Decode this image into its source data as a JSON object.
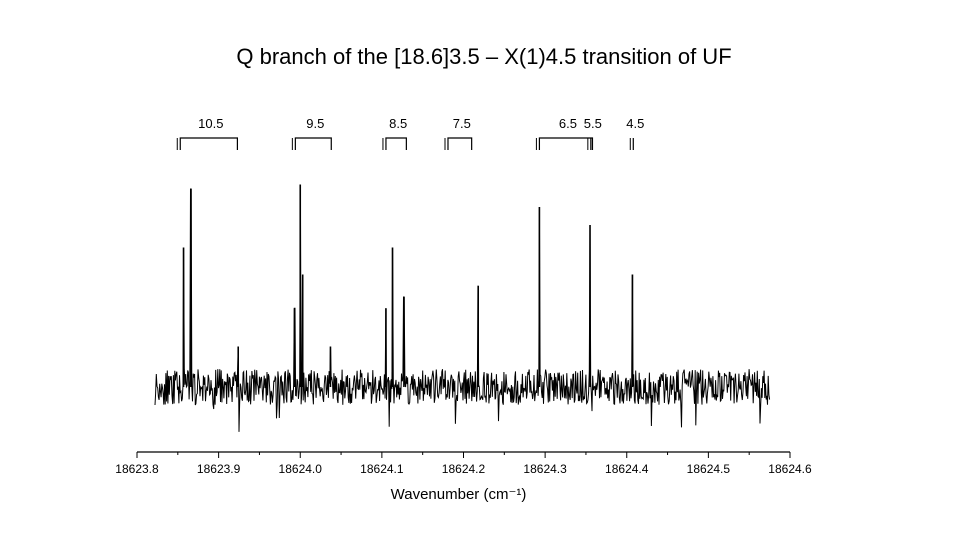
{
  "slide": {
    "title": "Q branch of the [18.6]3.5 – X(1)4.5 transition of UF"
  },
  "chart_data": {
    "type": "line",
    "title": "Q branch of the [18.6]3.5 – X(1)4.5 transition of UF",
    "xlabel": "Wavenumber (cm⁻¹)",
    "ylabel": "",
    "xlim": [
      18623.8,
      18624.6
    ],
    "x_ticks": [
      "18623.8",
      "18623.9",
      "18624.0",
      "18624.1",
      "18624.2",
      "18624.3",
      "18624.4",
      "18624.5",
      "18624.6"
    ],
    "y_axis_visible": false,
    "grid": false,
    "series": [
      {
        "style": "spectrum",
        "baseline": 0.0,
        "noise": 0.08,
        "x_range": [
          18623.822,
          18624.575
        ],
        "peaks": [
          {
            "x": 18623.857,
            "y": 0.62
          },
          {
            "x": 18623.866,
            "y": 0.88
          },
          {
            "x": 18623.924,
            "y": 0.18
          },
          {
            "x": 18623.993,
            "y": 0.35
          },
          {
            "x": 18624.0,
            "y": 0.9
          },
          {
            "x": 18624.003,
            "y": 0.5
          },
          {
            "x": 18624.037,
            "y": 0.18
          },
          {
            "x": 18624.105,
            "y": 0.35
          },
          {
            "x": 18624.113,
            "y": 0.62
          },
          {
            "x": 18624.127,
            "y": 0.4
          },
          {
            "x": 18624.218,
            "y": 0.45
          },
          {
            "x": 18624.293,
            "y": 0.8
          },
          {
            "x": 18624.355,
            "y": 0.72
          },
          {
            "x": 18624.407,
            "y": 0.5
          }
        ]
      }
    ],
    "j_labels": [
      {
        "text": "10.5",
        "x_left": 18623.853,
        "x_right": 18623.923
      },
      {
        "text": "9.5",
        "x_left": 18623.994,
        "x_right": 18624.038
      },
      {
        "text": "8.5",
        "x_left": 18624.105,
        "x_right": 18624.13
      },
      {
        "text": "7.5",
        "x_left": 18624.181,
        "x_right": 18624.21
      },
      {
        "text": "6.5",
        "x_left": 18624.293,
        "x_right": 18624.358
      },
      {
        "text": "5.5",
        "x_left": 18624.356,
        "x_right": 18624.356
      },
      {
        "text": "4.5",
        "x_left": 18624.408,
        "x_right": 18624.408
      }
    ]
  }
}
